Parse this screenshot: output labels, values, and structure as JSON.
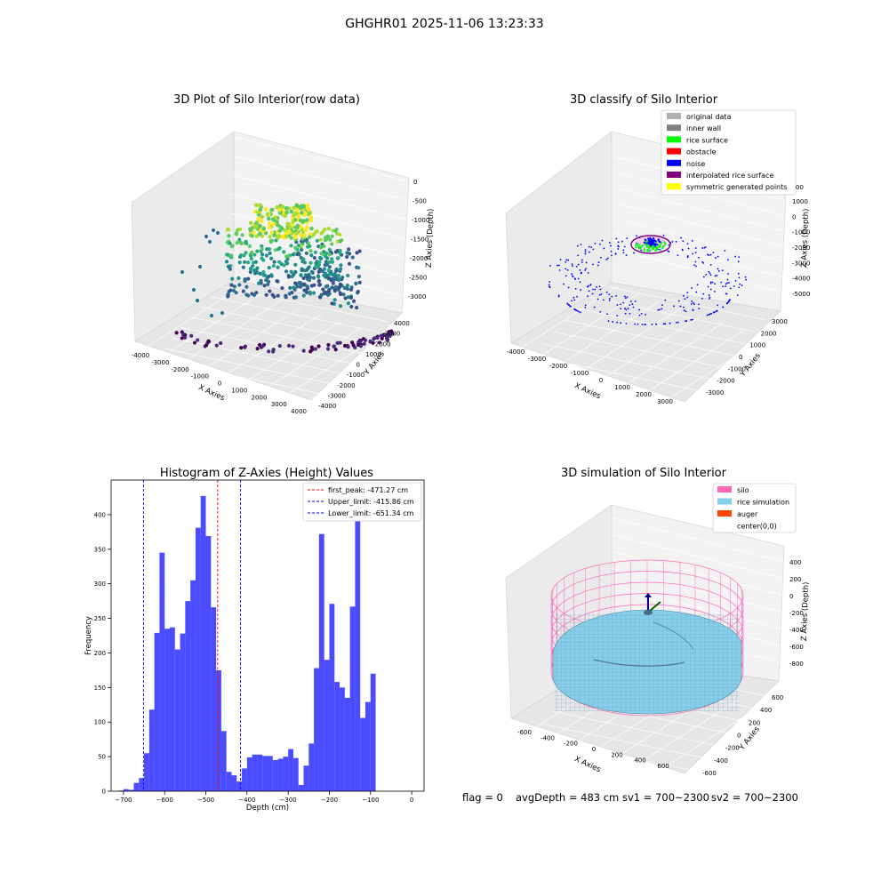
{
  "suptitle": "GHGHR01 2025-11-06 13:23:33",
  "bottom_text": {
    "flag": "flag = 0",
    "avg": "avgDepth = 483 cm",
    "sv1": "sv1 = 700~2300",
    "sv2": "sv2 = 700~2300"
  },
  "panels": {
    "raw": {
      "title": "3D Plot of Silo Interior(row data)",
      "xlabel": "X Axies",
      "ylabel": "Y Axies",
      "zlabel": "Z Axies (Depth)",
      "xticks": [
        "-4000",
        "-3000",
        "-2000",
        "-1000",
        "0",
        "1000",
        "2000",
        "3000",
        "4000"
      ],
      "yticks": [
        "4000",
        "3000",
        "2000",
        "1000",
        "0",
        "-1000",
        "-2000",
        "-3000",
        "-4000"
      ],
      "zticks": [
        "0",
        "-500",
        "-1000",
        "-1500",
        "-2000",
        "-2500",
        "-3000"
      ]
    },
    "classify": {
      "title": "3D classify of Silo Interior",
      "xlabel": "X Axies",
      "ylabel": "Y Axies",
      "zlabel": "Z Axies (Depth)",
      "xticks": [
        "-4000",
        "-3000",
        "-2000",
        "-1000",
        "0",
        "1000",
        "2000",
        "3000"
      ],
      "yticks": [
        "3000",
        "2000",
        "1000",
        "0",
        "-1000",
        "-2000",
        "-3000"
      ],
      "zticks": [
        "1000",
        "0",
        "-1000",
        "-2000",
        "-3000",
        "-4000",
        "-5000"
      ],
      "zextra": "00",
      "legend": [
        {
          "label": "original data",
          "color": "#b0b0b0"
        },
        {
          "label": "inner wall",
          "color": "#808080"
        },
        {
          "label": "rice surface",
          "color": "#00ff00"
        },
        {
          "label": "obstacle",
          "color": "#ff0000"
        },
        {
          "label": "noise",
          "color": "#0000ff"
        },
        {
          "label": "interpolated rice surface",
          "color": "#800080"
        },
        {
          "label": "symmetric generated points",
          "color": "#ffff00"
        }
      ]
    },
    "sim": {
      "title": "3D simulation of Silo Interior",
      "xlabel": "X Axies",
      "ylabel": "Y Axies",
      "zlabel": "Z Axies (Depth)",
      "xticks": [
        "-600",
        "-400",
        "-200",
        "0",
        "200",
        "400",
        "600"
      ],
      "yticks": [
        "600",
        "400",
        "200",
        "0",
        "-200",
        "-400",
        "-600"
      ],
      "zticks": [
        "400",
        "200",
        "0",
        "-200",
        "-400",
        "-600",
        "-800"
      ],
      "legend": [
        {
          "label": "silo",
          "color": "#ff69b4"
        },
        {
          "label": "rice simulation",
          "color": "#87ceeb"
        },
        {
          "label": "auger",
          "color": "#ff4500"
        },
        {
          "label": "center(0,0)",
          "color": "#ffffff"
        }
      ]
    }
  },
  "chart_data": [
    {
      "type": "scatter",
      "title": "3D Plot of Silo Interior(row data)",
      "xlabel": "X Axies",
      "ylabel": "Y Axies",
      "zlabel": "Z Axies (Depth)",
      "xlim": [
        -4000,
        4000
      ],
      "ylim": [
        -4000,
        4000
      ],
      "zlim": [
        -3000,
        0
      ],
      "colormap": "viridis by depth"
    },
    {
      "type": "scatter",
      "title": "3D classify of Silo Interior",
      "xlabel": "X Axies",
      "ylabel": "Y Axies",
      "zlabel": "Z Axies (Depth)",
      "xlim": [
        -4000,
        3000
      ],
      "ylim": [
        -3000,
        3000
      ],
      "zlim": [
        -5000,
        1000
      ],
      "legend_loc": "upper right"
    },
    {
      "type": "histogram",
      "title": "Histogram of Z-Axies (Height) Values",
      "xlabel": "Depth (cm)",
      "ylabel": "Frequency",
      "xlim": [
        -730,
        30
      ],
      "ylim": [
        0,
        450
      ],
      "xticks": [
        -700,
        -600,
        -500,
        -400,
        -300,
        -200,
        -100,
        0
      ],
      "yticks": [
        0,
        50,
        100,
        150,
        200,
        250,
        300,
        350,
        400
      ],
      "bar_color": "#0000ff",
      "bin_width": 12.5,
      "bins_start": [
        -712.5,
        -700,
        -687.5,
        -675,
        -662.5,
        -650,
        -637.5,
        -625,
        -612.5,
        -600,
        -587.5,
        -575,
        -562.5,
        -550,
        -537.5,
        -525,
        -512.5,
        -500,
        -487.5,
        -475,
        -462.5,
        -450,
        -437.5,
        -425,
        -412.5,
        -400,
        -387.5,
        -375,
        -362.5,
        -350,
        -337.5,
        -325,
        -312.5,
        -300,
        -287.5,
        -275,
        -262.5,
        -250,
        -237.5,
        -225,
        -212.5,
        -200,
        -187.5,
        -175,
        -162.5,
        -150,
        -137.5,
        -125,
        -112.5,
        -100,
        -87.5,
        -75,
        -62.5,
        -50,
        -37.5,
        -25,
        -12.5
      ],
      "counts": [
        1,
        3,
        2,
        12,
        19,
        55,
        118,
        229,
        345,
        235,
        237,
        205,
        228,
        275,
        305,
        381,
        427,
        369,
        266,
        175,
        87,
        28,
        23,
        14,
        33,
        49,
        53,
        53,
        51,
        51,
        45,
        47,
        50,
        61,
        48,
        9,
        37,
        69,
        178,
        372,
        190,
        271,
        158,
        150,
        135,
        267,
        400,
        106,
        129,
        170,
        0,
        0,
        0,
        0,
        0,
        0,
        0
      ],
      "vlines": [
        {
          "label": "first_peak: -471.27 cm",
          "x": -471.27,
          "color": "#ff0000"
        },
        {
          "label": "Upper_limit: -415.86 cm",
          "x": -415.86,
          "color": "#0000ff"
        },
        {
          "label": "Lower_limit: -651.34 cm",
          "x": -651.34,
          "color": "#0000ff"
        }
      ],
      "legend_loc": "upper right"
    },
    {
      "type": "surface",
      "title": "3D simulation of Silo Interior",
      "xlabel": "X Axies",
      "ylabel": "Y Axies",
      "zlabel": "Z Axies (Depth)",
      "xlim": [
        -700,
        700
      ],
      "ylim": [
        -700,
        700
      ],
      "zlim": [
        -900,
        500
      ],
      "legend_loc": "upper right"
    }
  ]
}
